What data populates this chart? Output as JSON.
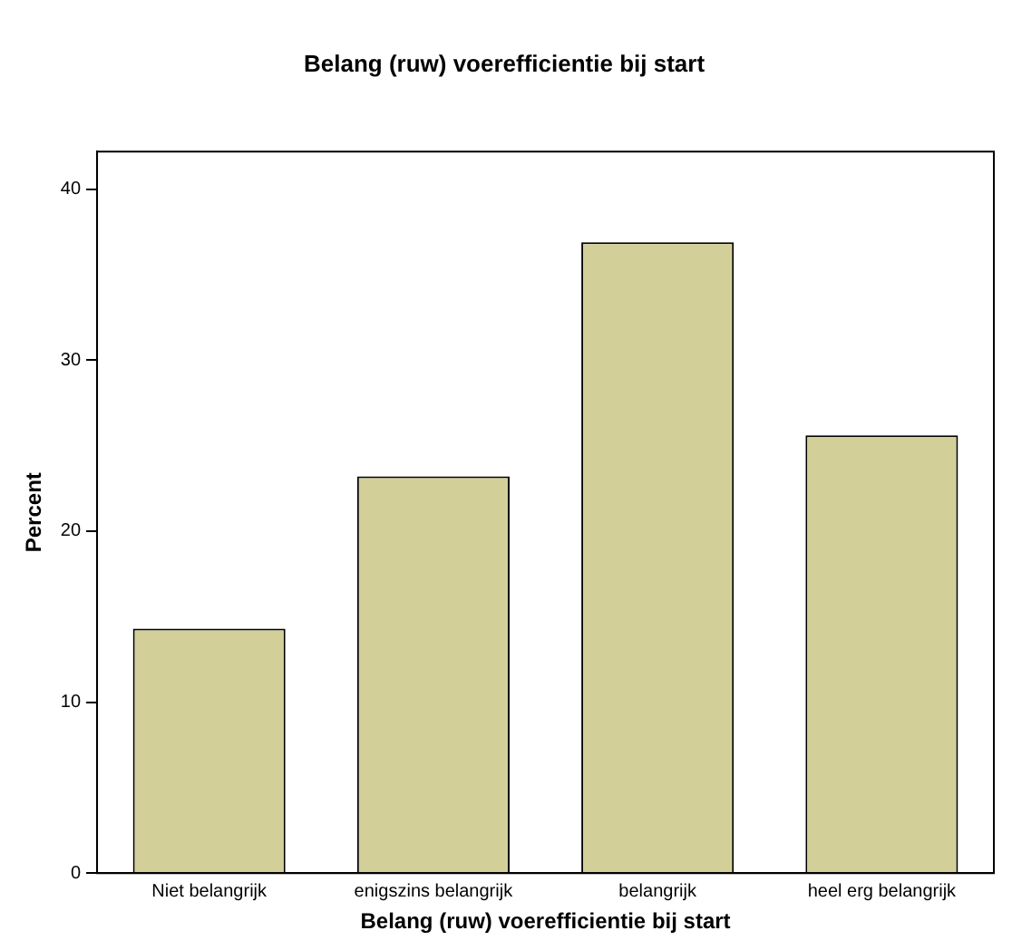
{
  "chart_data": {
    "type": "bar",
    "title": "Belang (ruw) voerefficientie bij start",
    "xlabel": "Belang (ruw) voerefficientie bij start",
    "ylabel": "Percent",
    "categories": [
      "Niet belangrijk",
      "enigszins belangrijk",
      "belangrijk",
      "heel erg belangrijk"
    ],
    "values": [
      14.3,
      23.2,
      36.9,
      25.6
    ],
    "color": "#d3cf98",
    "ylim": [
      0,
      42.2
    ],
    "yticks": [
      0,
      10,
      20,
      30,
      40
    ],
    "grid": false,
    "legend": false
  }
}
